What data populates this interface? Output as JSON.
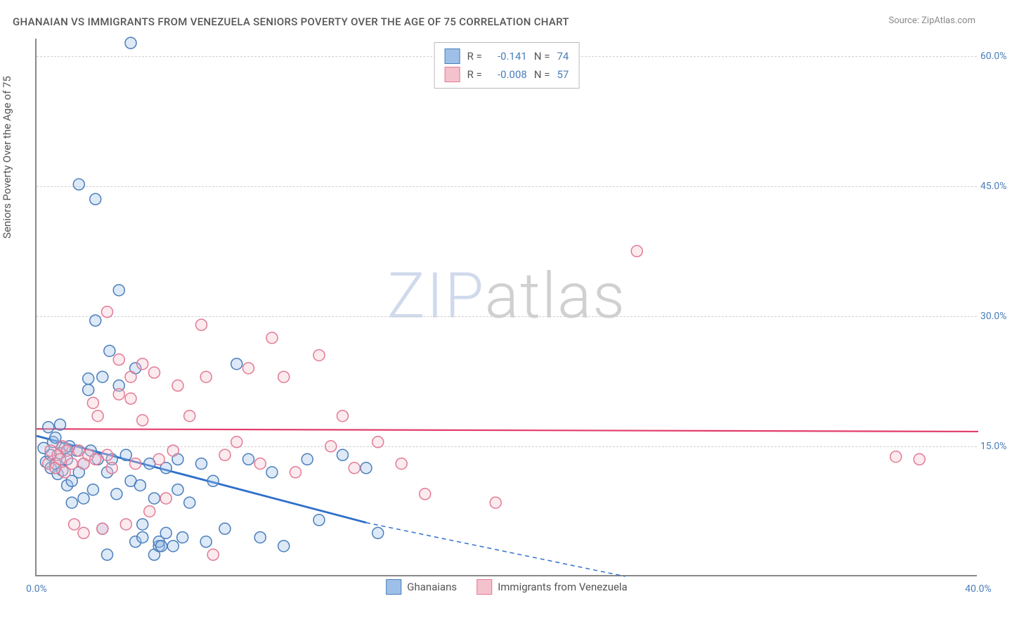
{
  "title": "GHANAIAN VS IMMIGRANTS FROM VENEZUELA SENIORS POVERTY OVER THE AGE OF 75 CORRELATION CHART",
  "source": "Source: ZipAtlas.com",
  "y_axis_label": "Seniors Poverty Over the Age of 75",
  "watermark": {
    "part1": "ZIP",
    "part2": "atlas"
  },
  "chart": {
    "type": "scatter",
    "xlim": [
      0,
      40
    ],
    "ylim": [
      0,
      62
    ],
    "x_ticks": [
      {
        "value": 0,
        "label": "0.0%"
      },
      {
        "value": 40,
        "label": "40.0%"
      }
    ],
    "y_ticks": [
      {
        "value": 15,
        "label": "15.0%"
      },
      {
        "value": 30,
        "label": "30.0%"
      },
      {
        "value": 45,
        "label": "45.0%"
      },
      {
        "value": 60,
        "label": "60.0%"
      }
    ],
    "grid_color": "#d0d0d0",
    "background_color": "#ffffff",
    "marker_radius": 8,
    "marker_stroke_width": 1.5,
    "marker_fill_opacity": 0.35,
    "series": [
      {
        "name": "Ghanaians",
        "color_fill": "#9ec0e8",
        "color_stroke": "#4a7ebb",
        "R": "-0.141",
        "N": "74",
        "trend": {
          "x1": 0,
          "y1": 16.2,
          "x2": 14,
          "y2": 6.2,
          "extend_to_x": 25,
          "color": "#2e6fc9",
          "width": 2.8
        },
        "points": [
          [
            0.3,
            14.8
          ],
          [
            0.4,
            13.2
          ],
          [
            0.5,
            17.2
          ],
          [
            0.6,
            12.5
          ],
          [
            0.6,
            14.0
          ],
          [
            0.7,
            15.5
          ],
          [
            0.8,
            13.0
          ],
          [
            0.8,
            16.0
          ],
          [
            0.9,
            11.8
          ],
          [
            1.0,
            14.2
          ],
          [
            1.0,
            17.5
          ],
          [
            1.1,
            12.2
          ],
          [
            1.2,
            14.8
          ],
          [
            1.3,
            10.5
          ],
          [
            1.3,
            13.5
          ],
          [
            1.4,
            15.0
          ],
          [
            1.5,
            11.0
          ],
          [
            1.5,
            8.5
          ],
          [
            1.7,
            14.5
          ],
          [
            1.8,
            12.0
          ],
          [
            1.8,
            45.2
          ],
          [
            2.0,
            13.0
          ],
          [
            2.0,
            9.0
          ],
          [
            2.2,
            21.5
          ],
          [
            2.2,
            22.8
          ],
          [
            2.3,
            14.5
          ],
          [
            2.4,
            10.0
          ],
          [
            2.5,
            29.5
          ],
          [
            2.5,
            43.5
          ],
          [
            2.6,
            13.5
          ],
          [
            2.8,
            5.5
          ],
          [
            2.8,
            23.0
          ],
          [
            3.0,
            12.0
          ],
          [
            3.0,
            2.5
          ],
          [
            3.1,
            26.0
          ],
          [
            3.2,
            13.5
          ],
          [
            3.4,
            9.5
          ],
          [
            3.5,
            22.0
          ],
          [
            3.5,
            33.0
          ],
          [
            3.8,
            14.0
          ],
          [
            4.0,
            11.0
          ],
          [
            4.0,
            61.5
          ],
          [
            4.2,
            4.0
          ],
          [
            4.2,
            24.0
          ],
          [
            4.4,
            10.5
          ],
          [
            4.5,
            6.0
          ],
          [
            4.5,
            4.5
          ],
          [
            4.8,
            13.0
          ],
          [
            5.0,
            9.0
          ],
          [
            5.0,
            2.5
          ],
          [
            5.2,
            3.5
          ],
          [
            5.2,
            4.0
          ],
          [
            5.3,
            3.5
          ],
          [
            5.5,
            12.5
          ],
          [
            5.5,
            5.0
          ],
          [
            5.8,
            3.5
          ],
          [
            6.0,
            10.0
          ],
          [
            6.0,
            13.5
          ],
          [
            6.2,
            4.5
          ],
          [
            6.5,
            8.5
          ],
          [
            7.0,
            13.0
          ],
          [
            7.2,
            4.0
          ],
          [
            7.5,
            11.0
          ],
          [
            8.0,
            5.5
          ],
          [
            8.5,
            24.5
          ],
          [
            9.0,
            13.5
          ],
          [
            9.5,
            4.5
          ],
          [
            10.0,
            12.0
          ],
          [
            10.5,
            3.5
          ],
          [
            11.5,
            13.5
          ],
          [
            12.0,
            6.5
          ],
          [
            13.0,
            14.0
          ],
          [
            14.0,
            12.5
          ],
          [
            14.5,
            5.0
          ]
        ]
      },
      {
        "name": "Immigrants from Venezuela",
        "color_fill": "#f4c2cd",
        "color_stroke": "#e37a95",
        "R": "-0.008",
        "N": "57",
        "trend": {
          "x1": 0,
          "y1": 17.0,
          "x2": 40,
          "y2": 16.7,
          "color": "#e23d6a",
          "width": 2.2
        },
        "points": [
          [
            0.5,
            13.0
          ],
          [
            0.6,
            14.5
          ],
          [
            0.8,
            12.5
          ],
          [
            0.9,
            14.0
          ],
          [
            1.0,
            13.5
          ],
          [
            1.1,
            15.0
          ],
          [
            1.2,
            12.0
          ],
          [
            1.3,
            14.5
          ],
          [
            1.5,
            13.0
          ],
          [
            1.6,
            6.0
          ],
          [
            1.8,
            14.5
          ],
          [
            2.0,
            13.0
          ],
          [
            2.0,
            5.0
          ],
          [
            2.2,
            14.0
          ],
          [
            2.4,
            20.0
          ],
          [
            2.5,
            13.5
          ],
          [
            2.6,
            18.5
          ],
          [
            2.8,
            5.5
          ],
          [
            3.0,
            30.5
          ],
          [
            3.0,
            14.0
          ],
          [
            3.2,
            12.5
          ],
          [
            3.5,
            25.0
          ],
          [
            3.5,
            21.0
          ],
          [
            3.8,
            6.0
          ],
          [
            4.0,
            20.5
          ],
          [
            4.0,
            23.0
          ],
          [
            4.2,
            13.0
          ],
          [
            4.5,
            24.5
          ],
          [
            4.5,
            18.0
          ],
          [
            4.8,
            7.5
          ],
          [
            5.0,
            23.5
          ],
          [
            5.2,
            13.5
          ],
          [
            5.5,
            9.0
          ],
          [
            5.8,
            14.5
          ],
          [
            6.0,
            22.0
          ],
          [
            6.5,
            18.5
          ],
          [
            7.0,
            29.0
          ],
          [
            7.2,
            23.0
          ],
          [
            7.5,
            2.5
          ],
          [
            8.0,
            14.0
          ],
          [
            8.5,
            15.5
          ],
          [
            9.0,
            24.0
          ],
          [
            9.5,
            13.0
          ],
          [
            10.0,
            27.5
          ],
          [
            10.5,
            23.0
          ],
          [
            11.0,
            12.0
          ],
          [
            12.0,
            25.5
          ],
          [
            12.5,
            15.0
          ],
          [
            13.0,
            18.5
          ],
          [
            13.5,
            12.5
          ],
          [
            14.5,
            15.5
          ],
          [
            15.5,
            13.0
          ],
          [
            16.5,
            9.5
          ],
          [
            19.5,
            8.5
          ],
          [
            25.5,
            37.5
          ],
          [
            36.5,
            13.8
          ],
          [
            37.5,
            13.5
          ]
        ]
      }
    ]
  },
  "correlation_box": {
    "R_label": "R =",
    "N_label": "N ="
  },
  "bottom_legend": [
    {
      "label": "Ghanaians",
      "fill": "#9ec0e8",
      "stroke": "#4a7ebb"
    },
    {
      "label": "Immigrants from Venezuela",
      "fill": "#f4c2cd",
      "stroke": "#e37a95"
    }
  ]
}
